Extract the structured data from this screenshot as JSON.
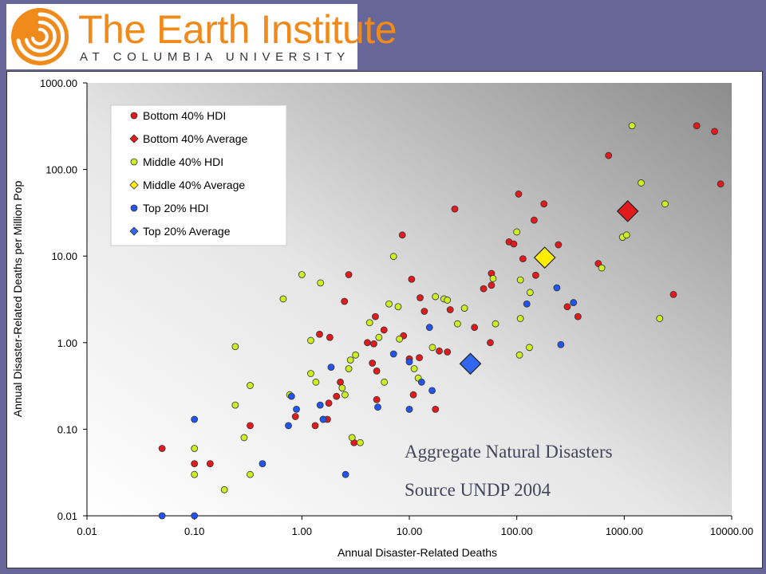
{
  "logo": {
    "title": "The Earth Institute",
    "subtitle": "AT COLUMBIA UNIVERSITY"
  },
  "colors": {
    "background": "#666699",
    "logo_orange": "#f08a1a",
    "bottom40": "#e31a1c",
    "middle40": "#ccee22",
    "top20": "#2255ee",
    "bottom40_avg": "#e31a1c",
    "middle40_avg": "#ffee00",
    "top20_avg": "#3366ee"
  },
  "chart_data": {
    "type": "scatter",
    "title": "",
    "xlabel": "Annual Disaster-Related Deaths",
    "ylabel": "Annual Disaster-Related Deaths per Million Pop",
    "xscale": "log",
    "yscale": "log",
    "xlim": [
      0.01,
      10000
    ],
    "ylim": [
      0.01,
      1000
    ],
    "xticks": [
      "0.01",
      "0.10",
      "1.00",
      "10.00",
      "100.00",
      "1000.00",
      "10000.00"
    ],
    "yticks": [
      "0.01",
      "0.10",
      "1.00",
      "10.00",
      "100.00",
      "1000.00"
    ],
    "legend_position": "top-left",
    "annotations": [
      "Aggregate Natural Disasters",
      "Source UNDP 2004"
    ],
    "series": [
      {
        "name": "Bottom 40% HDI",
        "marker": "circle",
        "color": "#e31a1c",
        "points": [
          [
            0.05,
            0.06
          ],
          [
            0.1,
            0.04
          ],
          [
            0.14,
            0.04
          ],
          [
            0.33,
            0.11
          ],
          [
            0.87,
            0.14
          ],
          [
            1.33,
            0.11
          ],
          [
            1.46,
            1.25
          ],
          [
            1.73,
            0.13
          ],
          [
            1.78,
            0.2
          ],
          [
            1.82,
            1.15
          ],
          [
            2.1,
            0.24
          ],
          [
            2.28,
            0.35
          ],
          [
            2.49,
            3.0
          ],
          [
            2.73,
            6.1
          ],
          [
            3.06,
            0.07
          ],
          [
            4.07,
            1.0
          ],
          [
            4.53,
            0.58
          ],
          [
            4.67,
            0.97
          ],
          [
            4.83,
            2.0
          ],
          [
            4.97,
            0.47
          ],
          [
            4.97,
            0.22
          ],
          [
            5.81,
            1.4
          ],
          [
            8.6,
            17.5
          ],
          [
            8.83,
            1.2
          ],
          [
            10.0,
            0.65
          ],
          [
            10.5,
            5.4
          ],
          [
            10.9,
            0.25
          ],
          [
            12.4,
            0.67
          ],
          [
            12.6,
            3.3
          ],
          [
            13.8,
            2.3
          ],
          [
            17.5,
            0.17
          ],
          [
            19.0,
            0.8
          ],
          [
            22.6,
            0.78
          ],
          [
            26.5,
            35.0
          ],
          [
            24.0,
            2.4
          ],
          [
            40.4,
            1.5
          ],
          [
            49.1,
            4.2
          ],
          [
            56.7,
            1.0
          ],
          [
            58.1,
            6.3
          ],
          [
            58.1,
            4.6
          ],
          [
            84.7,
            14.6
          ],
          [
            93.7,
            13.8
          ],
          [
            104.0,
            52.0
          ],
          [
            114.0,
            9.3
          ],
          [
            145.0,
            26.0
          ],
          [
            150.0,
            6.0
          ],
          [
            179.0,
            40.0
          ],
          [
            244.0,
            13.5
          ],
          [
            295.0,
            2.6
          ],
          [
            371.0,
            2.0
          ],
          [
            574.0,
            8.2
          ],
          [
            715.0,
            145.0
          ],
          [
            2871.0,
            3.6
          ],
          [
            4724.0,
            320.0
          ],
          [
            6928.0,
            275.0
          ],
          [
            7888.0,
            68.0
          ]
        ]
      },
      {
        "name": "Bottom 40% Average",
        "marker": "diamond",
        "color": "#e31a1c",
        "points": [
          [
            1077.0,
            33.0
          ]
        ]
      },
      {
        "name": "Middle 40% HDI",
        "marker": "circle",
        "color": "#ccee22",
        "points": [
          [
            0.1,
            0.06
          ],
          [
            0.1,
            0.03
          ],
          [
            0.19,
            0.02
          ],
          [
            0.24,
            0.9
          ],
          [
            0.24,
            0.19
          ],
          [
            0.29,
            0.08
          ],
          [
            0.33,
            0.32
          ],
          [
            0.33,
            0.03
          ],
          [
            0.67,
            3.2
          ],
          [
            0.77,
            0.25
          ],
          [
            1.0,
            6.1
          ],
          [
            1.21,
            0.44
          ],
          [
            1.21,
            1.06
          ],
          [
            1.35,
            0.35
          ],
          [
            1.49,
            4.9
          ],
          [
            1.58,
            0.13
          ],
          [
            2.37,
            0.3
          ],
          [
            2.52,
            0.25
          ],
          [
            2.73,
            0.5
          ],
          [
            2.83,
            0.63
          ],
          [
            2.93,
            0.08
          ],
          [
            3.16,
            0.72
          ],
          [
            3.49,
            0.07
          ],
          [
            4.27,
            1.7
          ],
          [
            5.21,
            1.15
          ],
          [
            5.85,
            0.35
          ],
          [
            6.47,
            2.8
          ],
          [
            7.13,
            9.9
          ],
          [
            7.87,
            2.6
          ],
          [
            8.09,
            1.1
          ],
          [
            11.1,
            0.5
          ],
          [
            12.1,
            0.39
          ],
          [
            16.4,
            0.88
          ],
          [
            17.5,
            3.4
          ],
          [
            21.0,
            3.2
          ],
          [
            22.6,
            3.1
          ],
          [
            28.1,
            1.65
          ],
          [
            32.6,
            2.5
          ],
          [
            60.2,
            5.5
          ],
          [
            63.4,
            1.65
          ],
          [
            100.0,
            19.0
          ],
          [
            106.0,
            0.72
          ],
          [
            108.0,
            5.3
          ],
          [
            108.0,
            1.9
          ],
          [
            131.0,
            0.88
          ],
          [
            133.0,
            3.8
          ],
          [
            617.0,
            7.3
          ],
          [
            964.0,
            16.5
          ],
          [
            1052.0,
            17.5
          ],
          [
            1183.0,
            320.0
          ],
          [
            1437.0,
            70.0
          ],
          [
            2138.0,
            1.9
          ],
          [
            2397.0,
            40.0
          ]
        ]
      },
      {
        "name": "Middle 40% Average",
        "marker": "diamond",
        "color": "#ffee00",
        "points": [
          [
            182.0,
            9.6
          ]
        ]
      },
      {
        "name": "Top 20% HDI",
        "marker": "circle",
        "color": "#2255ee",
        "points": [
          [
            0.05,
            0.01
          ],
          [
            0.1,
            0.01
          ],
          [
            0.1,
            0.13
          ],
          [
            0.43,
            0.04
          ],
          [
            0.75,
            0.11
          ],
          [
            0.8,
            0.24
          ],
          [
            0.89,
            0.17
          ],
          [
            1.48,
            0.19
          ],
          [
            1.58,
            0.13
          ],
          [
            1.87,
            0.52
          ],
          [
            2.55,
            0.03
          ],
          [
            5.09,
            0.18
          ],
          [
            7.13,
            0.74
          ],
          [
            10.0,
            0.17
          ],
          [
            10.0,
            0.6
          ],
          [
            13.0,
            0.35
          ],
          [
            15.4,
            1.5
          ],
          [
            16.3,
            0.28
          ],
          [
            124.0,
            2.8
          ],
          [
            236.0,
            4.3
          ],
          [
            257.0,
            0.95
          ],
          [
            337.0,
            2.9
          ]
        ]
      },
      {
        "name": "Top 20% Average",
        "marker": "diamond",
        "color": "#3366ee",
        "points": [
          [
            37.0,
            0.57
          ]
        ]
      }
    ]
  }
}
